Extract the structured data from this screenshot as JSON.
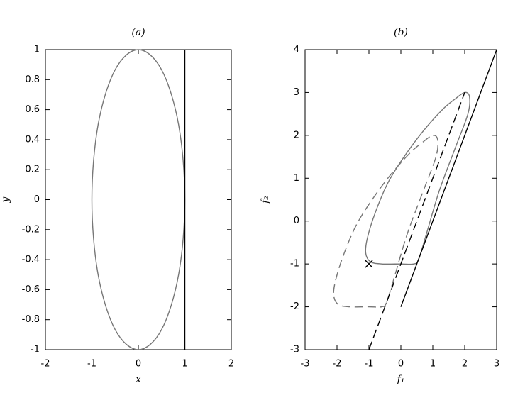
{
  "chart_data": [
    {
      "type": "line",
      "title": "(a)",
      "xlabel": "x",
      "ylabel": "y",
      "xlim": [
        -2,
        2
      ],
      "ylim": [
        -1,
        1
      ],
      "xticks": [
        -2,
        -1,
        0,
        1,
        2
      ],
      "yticks": [
        -1,
        -0.8,
        -0.6,
        -0.4,
        -0.2,
        0,
        0.2,
        0.4,
        0.6,
        0.8,
        1
      ],
      "series": [
        {
          "color": "#777777",
          "smooth": true,
          "x": [
            1,
            0.866,
            0.5,
            0,
            -0.5,
            -0.866,
            -1,
            -0.866,
            -0.5,
            0,
            0.5,
            0.866,
            1
          ],
          "y": [
            0,
            0.5,
            0.866,
            1,
            0.866,
            0.5,
            0,
            -0.5,
            -0.866,
            -1,
            -0.866,
            -0.5,
            0
          ]
        },
        {
          "color": "#000000",
          "x": [
            1,
            1
          ],
          "y": [
            -1,
            1
          ]
        }
      ]
    },
    {
      "type": "line",
      "title": "(b)",
      "xlabel": "f₁",
      "ylabel": "f₂",
      "xlim": [
        -3,
        3
      ],
      "ylim": [
        -3,
        4
      ],
      "xticks": [
        -3,
        -2,
        -1,
        0,
        1,
        2,
        3
      ],
      "yticks": [
        -3,
        -2,
        -1,
        0,
        1,
        2,
        3,
        4
      ],
      "series": [
        {
          "color": "#777777",
          "smooth": true,
          "x": [
            2,
            2.15,
            2.1,
            1.7,
            1.2,
            0.8,
            0.55,
            0.4,
            0,
            -0.6,
            -0.95,
            -1.1,
            -1.05,
            -0.8,
            -0.4,
            0.1,
            0.7,
            1.3,
            1.7,
            2
          ],
          "y": [
            3,
            2.9,
            2.5,
            1.7,
            0.7,
            -0.3,
            -0.9,
            -1,
            -1,
            -1,
            -0.95,
            -0.75,
            -0.4,
            0.2,
            0.9,
            1.5,
            2.1,
            2.6,
            2.85,
            3
          ]
        },
        {
          "color": "#777777",
          "smooth": true,
          "dash": true,
          "x": [
            1,
            1.15,
            1.1,
            0.7,
            0.2,
            -0.2,
            -0.45,
            -0.6,
            -1,
            -1.6,
            -1.95,
            -2.1,
            -2.05,
            -1.8,
            -1.4,
            -0.9,
            -0.3,
            0.3,
            0.7,
            1
          ],
          "y": [
            2,
            1.9,
            1.5,
            0.7,
            -0.3,
            -1.3,
            -1.9,
            -2,
            -2,
            -2,
            -1.95,
            -1.75,
            -1.4,
            -0.8,
            -0.1,
            0.5,
            1.1,
            1.6,
            1.85,
            2
          ]
        },
        {
          "color": "#000000",
          "x": [
            0,
            3
          ],
          "y": [
            -2,
            4
          ]
        },
        {
          "color": "#000000",
          "dash": true,
          "x": [
            -1,
            2
          ],
          "y": [
            -3,
            3
          ]
        },
        {
          "color": "#000000",
          "marker": "x",
          "x": [
            -1
          ],
          "y": [
            -1
          ]
        }
      ]
    }
  ]
}
